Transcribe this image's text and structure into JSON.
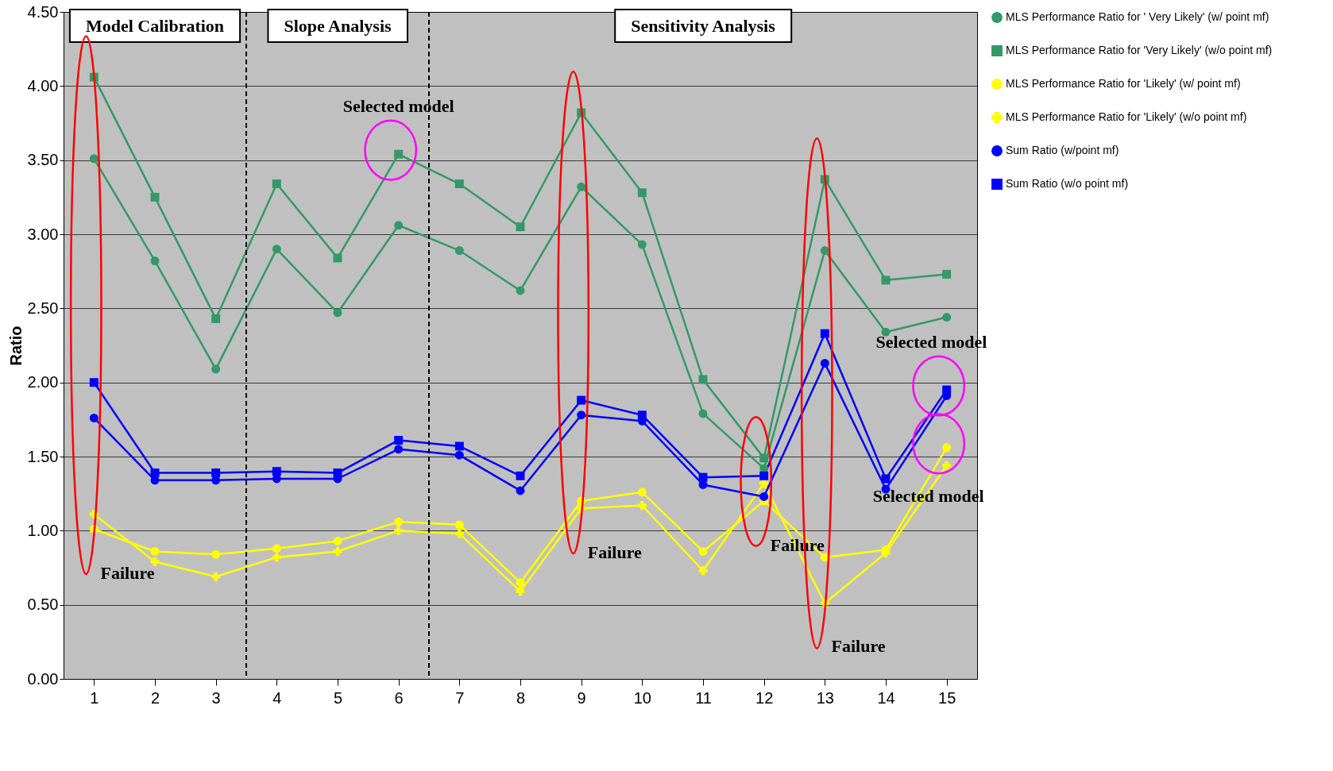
{
  "chart_data": {
    "type": "line",
    "ylabel": "Ratio",
    "x": [
      1,
      2,
      3,
      4,
      5,
      6,
      7,
      8,
      9,
      10,
      11,
      12,
      13,
      14,
      15
    ],
    "xlim": [
      0.5,
      15.5
    ],
    "xticks": [
      1,
      2,
      3,
      4,
      5,
      6,
      7,
      8,
      9,
      10,
      11,
      12,
      13,
      14,
      15
    ],
    "ylim": [
      0,
      4.5
    ],
    "yticks": [
      {
        "value": 0,
        "label": "0.00"
      },
      {
        "value": 0.5,
        "label": "0.50"
      },
      {
        "value": 1,
        "label": "1.00"
      },
      {
        "value": 1.5,
        "label": "1.50"
      },
      {
        "value": 2,
        "label": "2.00"
      },
      {
        "value": 2.5,
        "label": "2.50"
      },
      {
        "value": 3,
        "label": "3.00"
      },
      {
        "value": 3.5,
        "label": "3.50"
      },
      {
        "value": 4,
        "label": "4.00"
      },
      {
        "value": 4.5,
        "label": "4.50"
      }
    ],
    "grid": "y",
    "legend": "right",
    "series": [
      {
        "name": "MLS Performance Ratio for ' Very Likely' (w/ point mf)",
        "color": "#339966",
        "marker": "circle",
        "values": [
          3.51,
          2.82,
          2.09,
          2.9,
          2.47,
          3.06,
          2.89,
          2.62,
          3.32,
          2.93,
          1.79,
          1.42,
          2.89,
          2.34,
          2.44
        ]
      },
      {
        "name": "MLS Performance Ratio for 'Very Likely'  (w/o point mf)",
        "color": "#339966",
        "marker": "square",
        "values": [
          4.06,
          3.25,
          2.43,
          3.34,
          2.84,
          3.54,
          3.34,
          3.05,
          3.82,
          3.28,
          2.02,
          1.49,
          3.37,
          2.69,
          2.73
        ]
      },
      {
        "name": "MLS Performance Ratio for 'Likely' (w/ point mf)",
        "color": "#ffff00",
        "marker": "circle",
        "values": [
          1.01,
          0.86,
          0.84,
          0.88,
          0.93,
          1.06,
          1.04,
          0.65,
          1.2,
          1.26,
          0.86,
          1.2,
          0.82,
          0.87,
          1.56
        ]
      },
      {
        "name": "MLS Performance Ratio for 'Likely' (w/o point mf)",
        "color": "#ffff00",
        "marker": "cross",
        "values": [
          1.11,
          0.79,
          0.69,
          0.82,
          0.86,
          1.0,
          0.98,
          0.59,
          1.15,
          1.17,
          0.73,
          1.32,
          0.51,
          0.85,
          1.44
        ]
      },
      {
        "name": "Sum Ratio (w/point mf)",
        "color": "#0000ff",
        "marker": "circle",
        "values": [
          1.76,
          1.34,
          1.34,
          1.35,
          1.35,
          1.55,
          1.51,
          1.27,
          1.78,
          1.74,
          1.31,
          1.23,
          2.13,
          1.28,
          1.91
        ]
      },
      {
        "name": "Sum Ratio (w/o point mf)",
        "color": "#0000ff",
        "marker": "square",
        "values": [
          2.0,
          1.39,
          1.39,
          1.4,
          1.39,
          1.61,
          1.57,
          1.37,
          1.88,
          1.78,
          1.36,
          1.37,
          2.33,
          1.35,
          1.95
        ]
      }
    ],
    "ref_lines": [
      {
        "axis": "x",
        "value": 3.5,
        "color": "#000000",
        "line_style": "dashed"
      },
      {
        "axis": "x",
        "value": 6.5,
        "color": "#000000",
        "line_style": "dashed"
      }
    ],
    "annotations": [
      "Model Calibration",
      "Slope Analysis",
      "Sensitivity Analysis",
      {
        "text": "Selected model",
        "x": 6,
        "y": 3.54
      },
      {
        "text": "Failure",
        "x": 1,
        "y": 1.01
      },
      {
        "text": "Failure",
        "x": 9,
        "y": 1.15
      },
      {
        "text": "Failure",
        "x": 12,
        "y": 1.2
      },
      {
        "text": "Failure",
        "x": 13,
        "y": 0.51
      },
      {
        "text": "Selected model",
        "x": 15,
        "y": 1.95
      },
      {
        "text": "Selected model",
        "x": 15,
        "y": 1.56
      }
    ]
  }
}
